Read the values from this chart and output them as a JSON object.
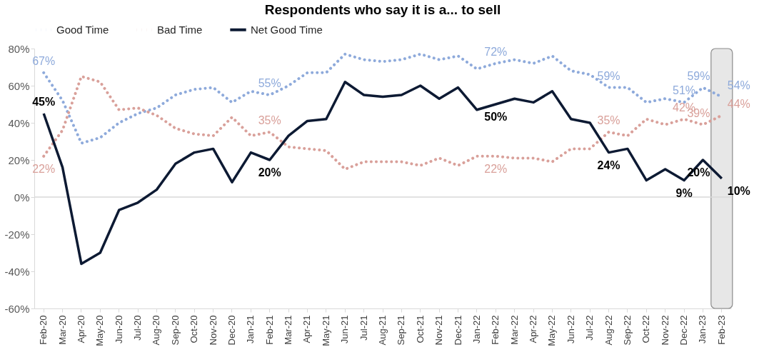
{
  "chart_data": {
    "type": "line",
    "title": "Respondents who say it is a... to sell",
    "categories": [
      "Feb-20",
      "Mar-20",
      "Apr-20",
      "May-20",
      "Jun-20",
      "Jul-20",
      "Aug-20",
      "Sep-20",
      "Oct-20",
      "Nov-20",
      "Dec-20",
      "Jan-21",
      "Feb-21",
      "Mar-21",
      "Apr-21",
      "May-21",
      "Jun-21",
      "Jul-21",
      "Aug-21",
      "Sep-21",
      "Oct-21",
      "Nov-21",
      "Dec-21",
      "Jan-22",
      "Feb-22",
      "Mar-22",
      "Apr-22",
      "May-22",
      "Jun-22",
      "Jul-22",
      "Aug-22",
      "Sep-22",
      "Oct-22",
      "Nov-22",
      "Dec-22",
      "Jan-23",
      "Feb-23"
    ],
    "series": [
      {
        "name": "Good Time",
        "color": "#8eaadb",
        "line_style": "dotted",
        "values": [
          67,
          52,
          29,
          32,
          40,
          45,
          48,
          55,
          58,
          59,
          51,
          57,
          55,
          60,
          67,
          67,
          77,
          74,
          73,
          74,
          77,
          74,
          76,
          69,
          72,
          74,
          72,
          76,
          68,
          66,
          59,
          59,
          51,
          53,
          51,
          59,
          54
        ],
        "value_labels": [
          "67%",
          null,
          null,
          null,
          null,
          null,
          null,
          null,
          null,
          null,
          null,
          null,
          "55%",
          null,
          null,
          null,
          null,
          null,
          null,
          null,
          null,
          null,
          null,
          null,
          "72%",
          null,
          null,
          null,
          null,
          null,
          "59%",
          null,
          null,
          null,
          "51%",
          "59%",
          "54%"
        ]
      },
      {
        "name": "Bad Time",
        "color": "#d9a09a",
        "line_style": "dotted",
        "values": [
          22,
          36,
          65,
          62,
          47,
          48,
          44,
          37,
          34,
          33,
          43,
          33,
          35,
          27,
          26,
          25,
          15,
          19,
          19,
          19,
          17,
          21,
          17,
          22,
          22,
          21,
          21,
          19,
          26,
          26,
          35,
          33,
          42,
          39,
          42,
          39,
          44
        ],
        "value_labels": [
          "22%",
          null,
          null,
          null,
          null,
          null,
          null,
          null,
          null,
          null,
          null,
          null,
          "35%",
          null,
          null,
          null,
          null,
          null,
          null,
          null,
          null,
          null,
          null,
          null,
          "22%",
          null,
          null,
          null,
          null,
          null,
          "35%",
          null,
          null,
          null,
          "42%",
          "39%",
          "44%"
        ]
      },
      {
        "name": "Net Good Time",
        "color": "#0d1a33",
        "line_style": "solid",
        "values": [
          45,
          16,
          -36,
          -30,
          -7,
          -3,
          4,
          18,
          24,
          26,
          8,
          24,
          20,
          33,
          41,
          42,
          62,
          55,
          54,
          55,
          60,
          53,
          59,
          47,
          50,
          53,
          51,
          57,
          42,
          40,
          24,
          26,
          9,
          15,
          9,
          20,
          10
        ],
        "value_labels": [
          "45%",
          null,
          null,
          null,
          null,
          null,
          null,
          null,
          null,
          null,
          null,
          null,
          "20%",
          null,
          null,
          null,
          null,
          null,
          null,
          null,
          null,
          null,
          null,
          null,
          "50%",
          null,
          null,
          null,
          null,
          null,
          "24%",
          null,
          null,
          null,
          "9%",
          "20%",
          "10%"
        ]
      }
    ],
    "ylim": [
      -60,
      80
    ],
    "yticks": [
      {
        "value": -60,
        "label": "-60%"
      },
      {
        "value": -40,
        "label": "-40%"
      },
      {
        "value": -20,
        "label": "-20%"
      },
      {
        "value": 0,
        "label": "0%"
      },
      {
        "value": 20,
        "label": "20%"
      },
      {
        "value": 40,
        "label": "40%"
      },
      {
        "value": 60,
        "label": "60%"
      },
      {
        "value": 80,
        "label": "80%"
      }
    ],
    "grid": false,
    "legend": "top",
    "marker": "none",
    "ref_lines": [
      {
        "axis": "y",
        "value": 0,
        "color": "#d9d9d9"
      }
    ],
    "bands": [
      {
        "axis": "x",
        "from": "Feb-23",
        "to": "Feb-23",
        "color": "#e7e7e7"
      }
    ]
  }
}
